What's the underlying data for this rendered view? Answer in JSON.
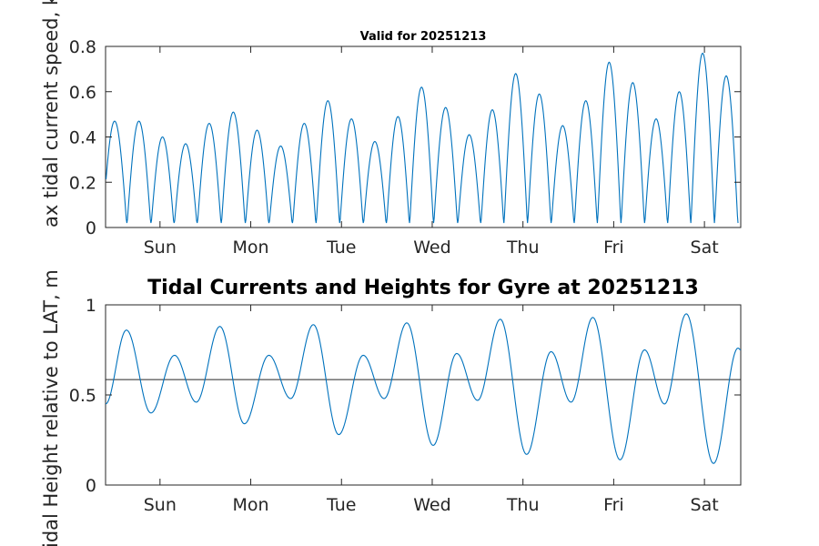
{
  "chart_data": [
    {
      "type": "line",
      "title": "Valid for 20251213",
      "ylabel": "Max tidal current speed, knots",
      "ylabel_visible": "ax tidal current speed, kn",
      "xlim": [
        0,
        7
      ],
      "ylim": [
        0,
        0.8
      ],
      "yticks": [
        0,
        0.2,
        0.4,
        0.6,
        0.8
      ],
      "ytick_labels": [
        "0",
        "0.2",
        "0.4",
        "0.6",
        "0.8"
      ],
      "xticks": [
        0.6,
        1.6,
        2.6,
        3.6,
        4.6,
        5.6,
        6.6
      ],
      "xtick_labels": [
        "Sun",
        "Mon",
        "Tue",
        "Wed",
        "Thu",
        "Fri",
        "Sat"
      ],
      "series": [
        {
          "name": "Tidal current speed",
          "color": "#0072bd",
          "peaks": [
            {
              "x": 0.1,
              "y": 0.47
            },
            {
              "x": 0.37,
              "y": 0.47
            },
            {
              "x": 0.63,
              "y": 0.4
            },
            {
              "x": 0.88,
              "y": 0.37
            },
            {
              "x": 1.14,
              "y": 0.46
            },
            {
              "x": 1.41,
              "y": 0.51
            },
            {
              "x": 1.67,
              "y": 0.43
            },
            {
              "x": 1.93,
              "y": 0.36
            },
            {
              "x": 2.19,
              "y": 0.46
            },
            {
              "x": 2.45,
              "y": 0.56
            },
            {
              "x": 2.71,
              "y": 0.48
            },
            {
              "x": 2.97,
              "y": 0.38
            },
            {
              "x": 3.22,
              "y": 0.49
            },
            {
              "x": 3.48,
              "y": 0.62
            },
            {
              "x": 3.75,
              "y": 0.53
            },
            {
              "x": 4.01,
              "y": 0.41
            },
            {
              "x": 4.26,
              "y": 0.52
            },
            {
              "x": 4.52,
              "y": 0.68
            },
            {
              "x": 4.78,
              "y": 0.59
            },
            {
              "x": 5.04,
              "y": 0.45
            },
            {
              "x": 5.29,
              "y": 0.56
            },
            {
              "x": 5.55,
              "y": 0.73
            },
            {
              "x": 5.81,
              "y": 0.64
            },
            {
              "x": 6.07,
              "y": 0.48
            },
            {
              "x": 6.32,
              "y": 0.6
            },
            {
              "x": 6.58,
              "y": 0.77
            },
            {
              "x": 6.84,
              "y": 0.67
            }
          ]
        }
      ]
    },
    {
      "type": "line",
      "title": "Tidal Currents and Heights for Gyre at 20251213",
      "ylabel": "Tidal Height relative to LAT, m",
      "ylabel_visible": "idal Height relative to LAT, m",
      "xlim": [
        0,
        7
      ],
      "ylim": [
        0,
        1
      ],
      "yticks": [
        0,
        0.5,
        1
      ],
      "ytick_labels": [
        "0",
        "0.5",
        "1"
      ],
      "xticks": [
        0.6,
        1.6,
        2.6,
        3.6,
        4.6,
        5.6,
        6.6
      ],
      "xtick_labels": [
        "Sun",
        "Mon",
        "Tue",
        "Wed",
        "Thu",
        "Fri",
        "Sat"
      ],
      "mean_level": 0.585,
      "series": [
        {
          "name": "Tidal height",
          "color": "#0072bd",
          "extrema": [
            {
              "x": 0.0,
              "y": 0.45
            },
            {
              "x": 0.23,
              "y": 0.86
            },
            {
              "x": 0.5,
              "y": 0.4
            },
            {
              "x": 0.76,
              "y": 0.72
            },
            {
              "x": 1.0,
              "y": 0.46
            },
            {
              "x": 1.26,
              "y": 0.88
            },
            {
              "x": 1.53,
              "y": 0.34
            },
            {
              "x": 1.8,
              "y": 0.72
            },
            {
              "x": 2.04,
              "y": 0.48
            },
            {
              "x": 2.29,
              "y": 0.89
            },
            {
              "x": 2.57,
              "y": 0.28
            },
            {
              "x": 2.84,
              "y": 0.72
            },
            {
              "x": 3.07,
              "y": 0.48
            },
            {
              "x": 3.32,
              "y": 0.9
            },
            {
              "x": 3.61,
              "y": 0.22
            },
            {
              "x": 3.87,
              "y": 0.73
            },
            {
              "x": 4.1,
              "y": 0.47
            },
            {
              "x": 4.35,
              "y": 0.92
            },
            {
              "x": 4.64,
              "y": 0.17
            },
            {
              "x": 4.91,
              "y": 0.74
            },
            {
              "x": 5.13,
              "y": 0.46
            },
            {
              "x": 5.37,
              "y": 0.93
            },
            {
              "x": 5.67,
              "y": 0.14
            },
            {
              "x": 5.94,
              "y": 0.75
            },
            {
              "x": 6.16,
              "y": 0.45
            },
            {
              "x": 6.4,
              "y": 0.95
            },
            {
              "x": 6.7,
              "y": 0.12
            },
            {
              "x": 6.97,
              "y": 0.76
            },
            {
              "x": 7.0,
              "y": 0.75
            }
          ]
        }
      ]
    }
  ]
}
